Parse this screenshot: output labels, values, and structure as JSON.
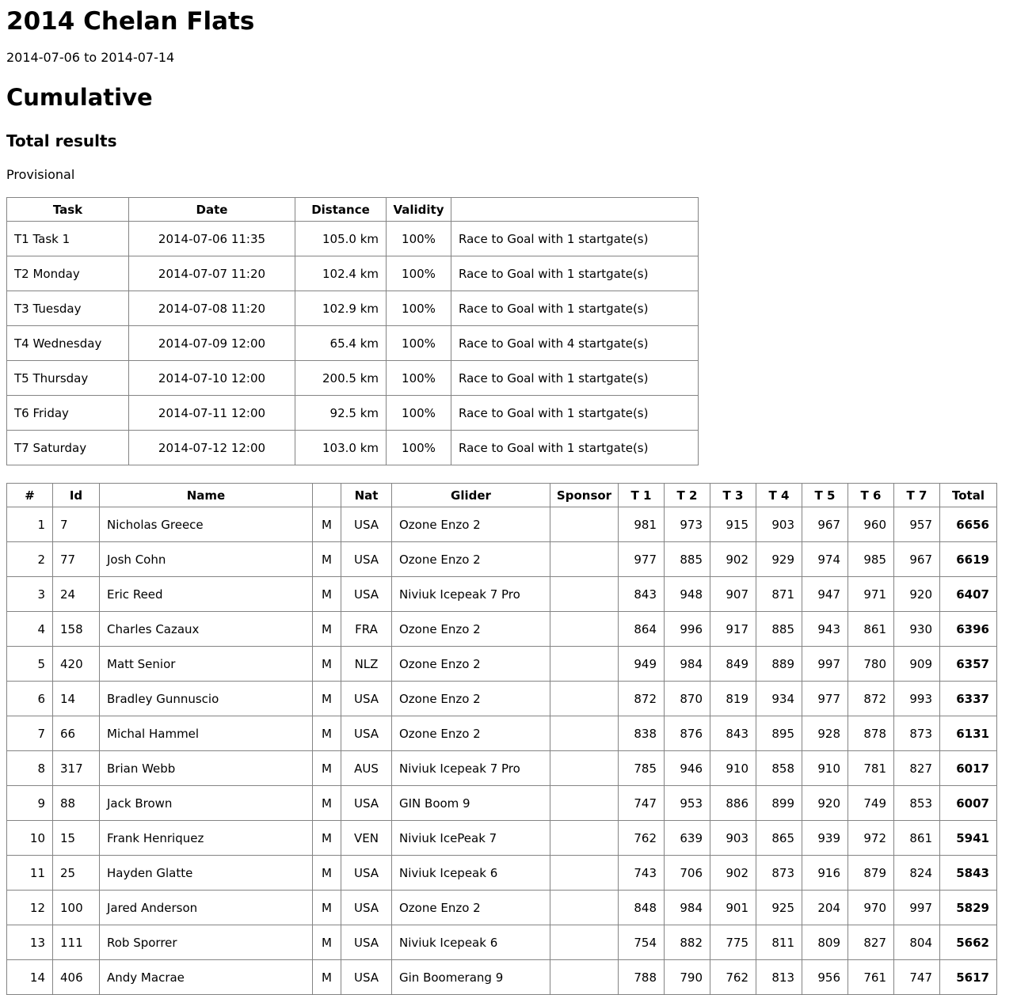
{
  "header": {
    "title": "2014 Chelan Flats",
    "date_range": "2014-07-06 to 2014-07-14",
    "section": "Cumulative",
    "subsection": "Total results",
    "status": "Provisional"
  },
  "colors": {
    "text": "#000000",
    "background": "#ffffff",
    "table_border": "#848484"
  },
  "task_table": {
    "headers": [
      "Task",
      "Date",
      "Distance",
      "Validity",
      ""
    ],
    "rows": [
      [
        "T1 Task 1",
        "2014-07-06 11:35",
        "105.0 km",
        "100%",
        "Race to Goal with 1 startgate(s)"
      ],
      [
        "T2 Monday",
        "2014-07-07 11:20",
        "102.4 km",
        "100%",
        "Race to Goal with 1 startgate(s)"
      ],
      [
        "T3 Tuesday",
        "2014-07-08 11:20",
        "102.9 km",
        "100%",
        "Race to Goal with 1 startgate(s)"
      ],
      [
        "T4 Wednesday",
        "2014-07-09 12:00",
        "65.4 km",
        "100%",
        "Race to Goal with 4 startgate(s)"
      ],
      [
        "T5 Thursday",
        "2014-07-10 12:00",
        "200.5 km",
        "100%",
        "Race to Goal with 1 startgate(s)"
      ],
      [
        "T6 Friday",
        "2014-07-11 12:00",
        "92.5 km",
        "100%",
        "Race to Goal with 1 startgate(s)"
      ],
      [
        "T7 Saturday",
        "2014-07-12 12:00",
        "103.0 km",
        "100%",
        "Race to Goal with 1 startgate(s)"
      ]
    ]
  },
  "results_table": {
    "headers": [
      "#",
      "Id",
      "Name",
      "",
      "Nat",
      "Glider",
      "Sponsor",
      "T 1",
      "T 2",
      "T 3",
      "T 4",
      "T 5",
      "T 6",
      "T 7",
      "Total"
    ],
    "rows": [
      [
        1,
        7,
        "Nicholas Greece",
        "M",
        "USA",
        "Ozone Enzo 2",
        "",
        981,
        973,
        915,
        903,
        967,
        960,
        957,
        6656
      ],
      [
        2,
        77,
        "Josh Cohn",
        "M",
        "USA",
        "Ozone Enzo 2",
        "",
        977,
        885,
        902,
        929,
        974,
        985,
        967,
        6619
      ],
      [
        3,
        24,
        "Eric Reed",
        "M",
        "USA",
        "Niviuk Icepeak 7 Pro",
        "",
        843,
        948,
        907,
        871,
        947,
        971,
        920,
        6407
      ],
      [
        4,
        158,
        "Charles Cazaux",
        "M",
        "FRA",
        "Ozone Enzo 2",
        "",
        864,
        996,
        917,
        885,
        943,
        861,
        930,
        6396
      ],
      [
        5,
        420,
        "Matt Senior",
        "M",
        "NLZ",
        "Ozone Enzo 2",
        "",
        949,
        984,
        849,
        889,
        997,
        780,
        909,
        6357
      ],
      [
        6,
        14,
        "Bradley Gunnuscio",
        "M",
        "USA",
        "Ozone Enzo 2",
        "",
        872,
        870,
        819,
        934,
        977,
        872,
        993,
        6337
      ],
      [
        7,
        66,
        "Michal Hammel",
        "M",
        "USA",
        "Ozone Enzo 2",
        "",
        838,
        876,
        843,
        895,
        928,
        878,
        873,
        6131
      ],
      [
        8,
        317,
        "Brian Webb",
        "M",
        "AUS",
        "Niviuk Icepeak 7 Pro",
        "",
        785,
        946,
        910,
        858,
        910,
        781,
        827,
        6017
      ],
      [
        9,
        88,
        "Jack Brown",
        "M",
        "USA",
        "GIN Boom 9",
        "",
        747,
        953,
        886,
        899,
        920,
        749,
        853,
        6007
      ],
      [
        10,
        15,
        "Frank Henriquez",
        "M",
        "VEN",
        "Niviuk IcePeak 7",
        "",
        762,
        639,
        903,
        865,
        939,
        972,
        861,
        5941
      ],
      [
        11,
        25,
        "Hayden Glatte",
        "M",
        "USA",
        "Niviuk Icepeak 6",
        "",
        743,
        706,
        902,
        873,
        916,
        879,
        824,
        5843
      ],
      [
        12,
        100,
        "Jared Anderson",
        "M",
        "USA",
        "Ozone Enzo 2",
        "",
        848,
        984,
        901,
        925,
        204,
        970,
        997,
        5829
      ],
      [
        13,
        111,
        "Rob Sporrer",
        "M",
        "USA",
        "Niviuk Icepeak 6",
        "",
        754,
        882,
        775,
        811,
        809,
        827,
        804,
        5662
      ],
      [
        14,
        406,
        "Andy Macrae",
        "M",
        "USA",
        "Gin Boomerang 9",
        "",
        788,
        790,
        762,
        813,
        956,
        761,
        747,
        5617
      ]
    ]
  }
}
